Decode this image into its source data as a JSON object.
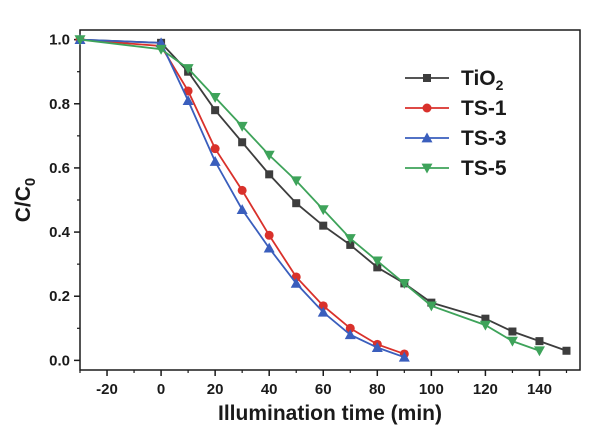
{
  "chart_data": {
    "type": "line",
    "xlabel": "Illumination time (min)",
    "ylabel_main": "C/C",
    "ylabel_sub": "0",
    "xlim": [
      -30,
      155
    ],
    "ylim": [
      -0.03,
      1.03
    ],
    "xticks": [
      -20,
      0,
      20,
      40,
      60,
      80,
      100,
      120,
      140
    ],
    "yticks": [
      0.0,
      0.2,
      0.4,
      0.6,
      0.8,
      1.0
    ],
    "ytick_labels": [
      "0.0",
      "0.2",
      "0.4",
      "0.6",
      "0.8",
      "1.0"
    ],
    "legend_position": "top-right",
    "grid": false,
    "series": [
      {
        "name_main": "TiO",
        "name_sub": "2",
        "color": "#3d3d3d",
        "marker": "square",
        "x": [
          -30,
          0,
          10,
          20,
          30,
          40,
          50,
          60,
          70,
          80,
          90,
          100,
          120,
          130,
          140,
          150
        ],
        "y": [
          1.0,
          0.99,
          0.9,
          0.78,
          0.68,
          0.58,
          0.49,
          0.42,
          0.36,
          0.29,
          0.24,
          0.18,
          0.13,
          0.09,
          0.06,
          0.03
        ]
      },
      {
        "name_main": "TS-1",
        "name_sub": "",
        "color": "#d9312b",
        "marker": "circle",
        "x": [
          -30,
          0,
          10,
          20,
          30,
          40,
          50,
          60,
          70,
          80,
          90
        ],
        "y": [
          1.0,
          0.98,
          0.84,
          0.66,
          0.53,
          0.39,
          0.26,
          0.17,
          0.1,
          0.05,
          0.02
        ]
      },
      {
        "name_main": "TS-3",
        "name_sub": "",
        "color": "#3a5ebd",
        "marker": "triangle-up",
        "x": [
          -30,
          0,
          10,
          20,
          30,
          40,
          50,
          60,
          70,
          80,
          90
        ],
        "y": [
          1.0,
          0.99,
          0.81,
          0.62,
          0.47,
          0.35,
          0.24,
          0.15,
          0.08,
          0.04,
          0.01
        ]
      },
      {
        "name_main": "TS-5",
        "name_sub": "",
        "color": "#3ea35a",
        "marker": "triangle-down",
        "x": [
          -30,
          0,
          10,
          20,
          30,
          40,
          50,
          60,
          70,
          80,
          90,
          100,
          120,
          130,
          140
        ],
        "y": [
          1.0,
          0.97,
          0.91,
          0.82,
          0.73,
          0.64,
          0.56,
          0.47,
          0.38,
          0.31,
          0.24,
          0.17,
          0.11,
          0.06,
          0.03
        ]
      }
    ]
  }
}
